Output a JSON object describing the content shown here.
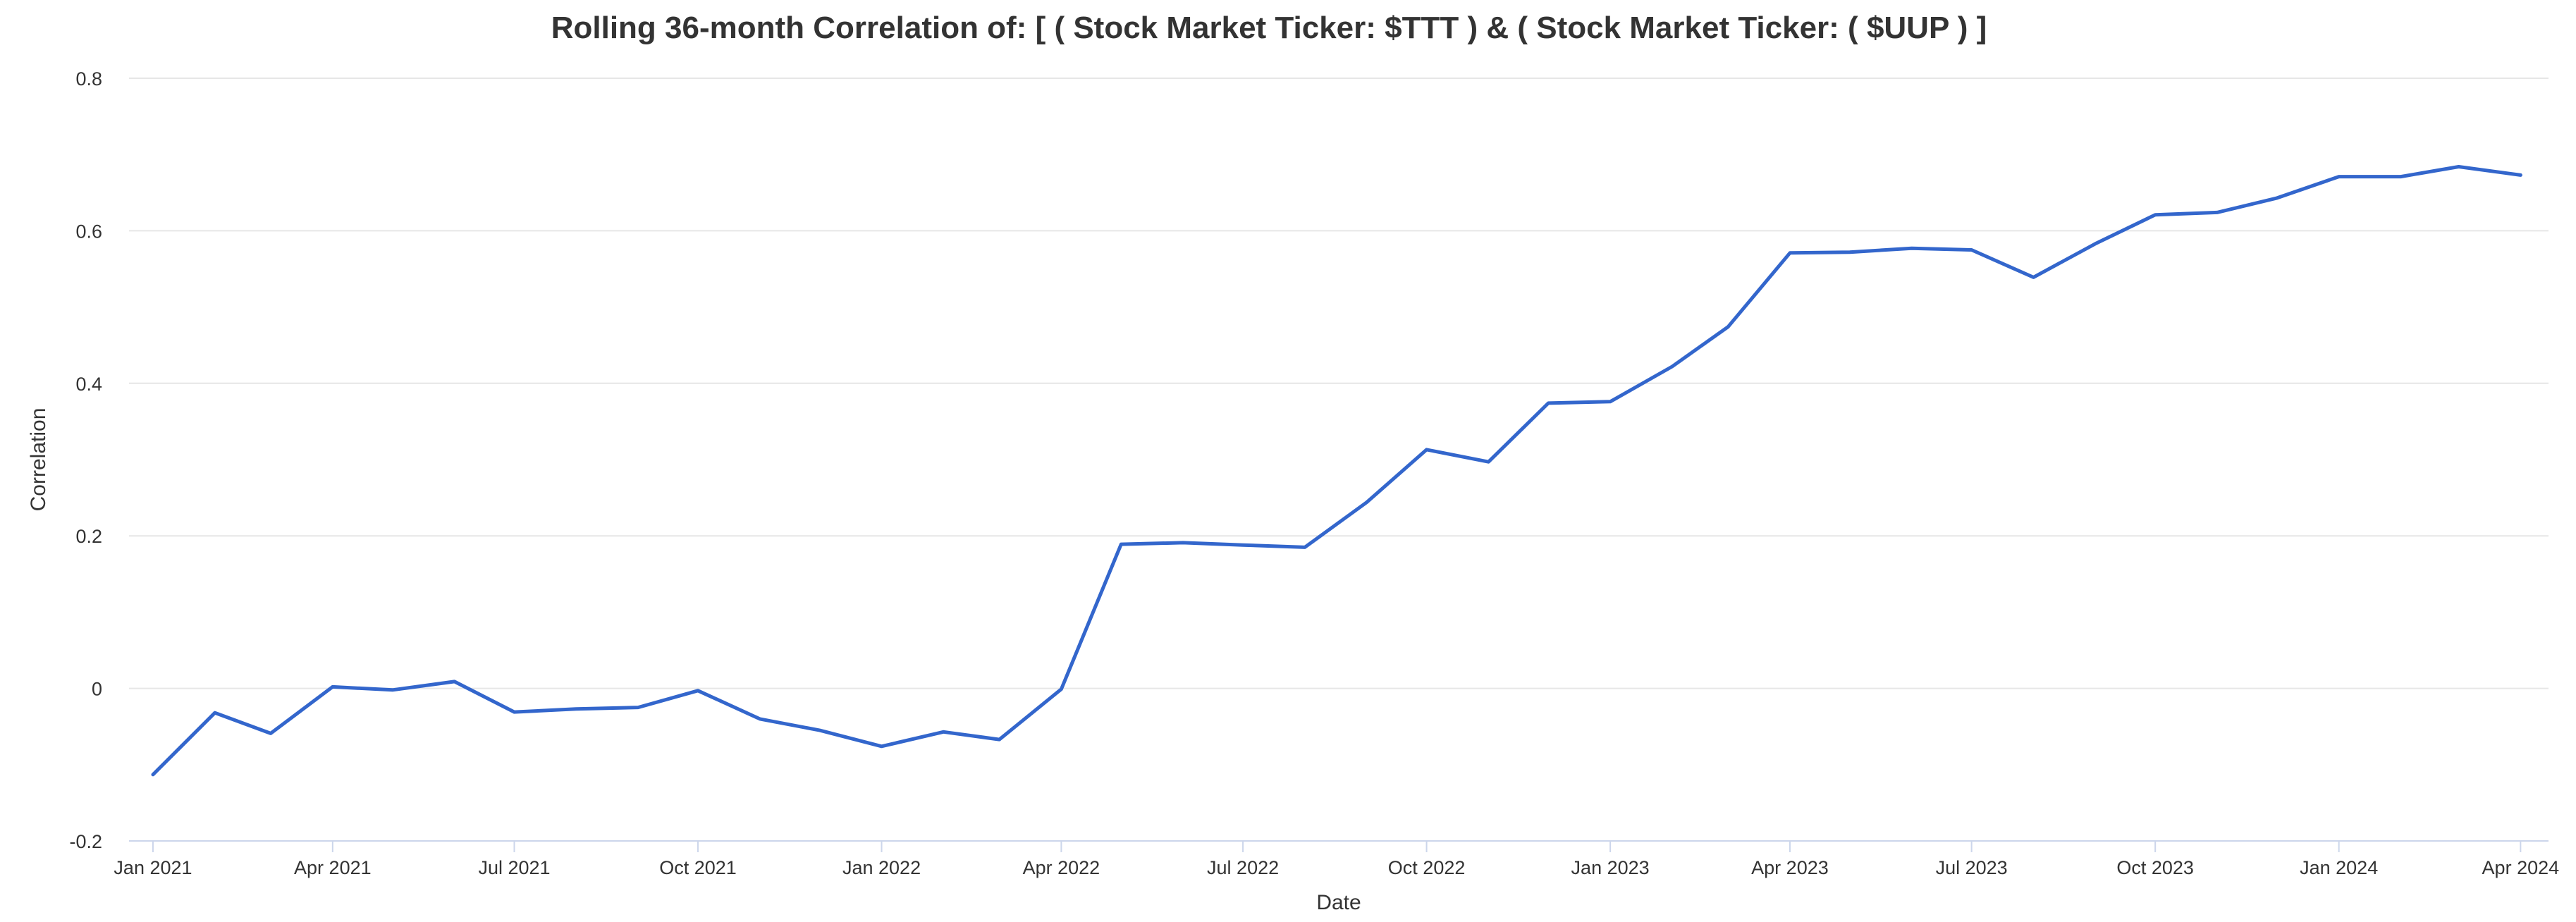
{
  "chart_data": {
    "type": "line",
    "title": "Rolling 36-month Correlation of: [ ( Stock Market Ticker: $TTT ) & ( Stock Market Ticker: ( $UUP ) ]",
    "xlabel": "Date",
    "ylabel": "Correlation",
    "ylim": [
      -0.2,
      0.8
    ],
    "y_ticks": [
      -0.2,
      0,
      0.2,
      0.4,
      0.6,
      0.8
    ],
    "y_tick_labels": [
      "-0.2",
      "0",
      "0.2",
      "0.4",
      "0.6",
      "0.8"
    ],
    "x_range": [
      "2020-12-20",
      "2024-04-15"
    ],
    "x_ticks": [
      "2021-01-01",
      "2021-04-01",
      "2021-07-01",
      "2021-10-01",
      "2022-01-01",
      "2022-04-01",
      "2022-07-01",
      "2022-10-01",
      "2023-01-01",
      "2023-04-01",
      "2023-07-01",
      "2023-10-01",
      "2024-01-01",
      "2024-04-01"
    ],
    "x_tick_labels": [
      "Jan 2021",
      "Apr 2021",
      "Jul 2021",
      "Oct 2021",
      "Jan 2022",
      "Apr 2022",
      "Jul 2022",
      "Oct 2022",
      "Jan 2023",
      "Apr 2023",
      "Jul 2023",
      "Oct 2023",
      "Jan 2024",
      "Apr 2024"
    ],
    "grid": true,
    "legend": "none",
    "series": [
      {
        "color": "#3366cc",
        "x": [
          "2021-01-01",
          "2021-02-01",
          "2021-03-01",
          "2021-04-01",
          "2021-05-01",
          "2021-06-01",
          "2021-07-01",
          "2021-08-01",
          "2021-09-01",
          "2021-10-01",
          "2021-11-01",
          "2021-12-01",
          "2022-01-01",
          "2022-02-01",
          "2022-03-01",
          "2022-04-01",
          "2022-05-01",
          "2022-06-01",
          "2022-07-01",
          "2022-08-01",
          "2022-09-01",
          "2022-10-01",
          "2022-11-01",
          "2022-12-01",
          "2023-01-01",
          "2023-02-01",
          "2023-03-01",
          "2023-04-01",
          "2023-05-01",
          "2023-06-01",
          "2023-07-01",
          "2023-08-01",
          "2023-09-01",
          "2023-10-01",
          "2023-11-01",
          "2023-12-01",
          "2024-01-01",
          "2024-02-01",
          "2024-03-01",
          "2024-04-01"
        ],
        "values": [
          -0.113,
          -0.032,
          -0.059,
          0.002,
          -0.002,
          0.009,
          -0.031,
          -0.027,
          -0.025,
          -0.003,
          -0.04,
          -0.055,
          -0.076,
          -0.057,
          -0.067,
          -0.001,
          0.189,
          0.191,
          0.188,
          0.185,
          0.244,
          0.313,
          0.297,
          0.374,
          0.376,
          0.422,
          0.474,
          0.571,
          0.572,
          0.577,
          0.575,
          0.539,
          0.583,
          0.621,
          0.624,
          0.643,
          0.671,
          0.671,
          0.684,
          0.673
        ]
      }
    ]
  }
}
